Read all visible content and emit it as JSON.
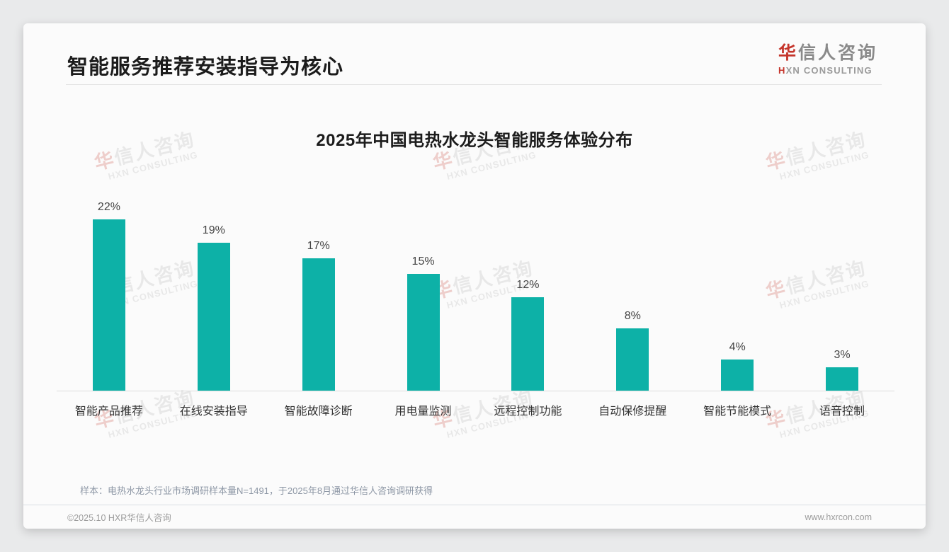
{
  "page": {
    "title": "智能服务推荐安装指导为核心",
    "logo": {
      "brand_red": "华",
      "brand_rest": "信人咨询",
      "sub_red": "H",
      "sub_rest": "XN CONSULTING"
    },
    "watermark": {
      "line1_red": "华",
      "line1_rest": "信人咨询",
      "line2": "HXN CONSULTING"
    },
    "footnote": "样本：电热水龙头行业市场调研样本量N=1491，于2025年8月通过华信人咨询调研获得",
    "footer": {
      "copyright": "©2025.10 HXR华信人咨询",
      "website": "www.hxrcon.com"
    }
  },
  "colors": {
    "bar_teal": "#0DB1A7",
    "accent_red": "#C5352B",
    "title_text": "#1C1C1C",
    "note_text": "#8D97A5",
    "footer_text": "#9B9B9B"
  },
  "chart_data": {
    "type": "bar",
    "title": "2025年中国电热水龙头智能服务体验分布",
    "categories": [
      "智能产品推荐",
      "在线安装指导",
      "智能故障诊断",
      "用电量监测",
      "远程控制功能",
      "自动保修提醒",
      "智能节能模式",
      "语音控制"
    ],
    "values": [
      22,
      19,
      17,
      15,
      12,
      8,
      4,
      3
    ],
    "unit": "%",
    "value_labels": [
      "22%",
      "19%",
      "17%",
      "15%",
      "12%",
      "8%",
      "4%",
      "3%"
    ],
    "xlabel": "",
    "ylabel": "",
    "ylim": [
      0,
      24
    ],
    "grid": false,
    "legend": false,
    "data_labels_position": "above bars",
    "bar_color": "#0DB1A7"
  }
}
